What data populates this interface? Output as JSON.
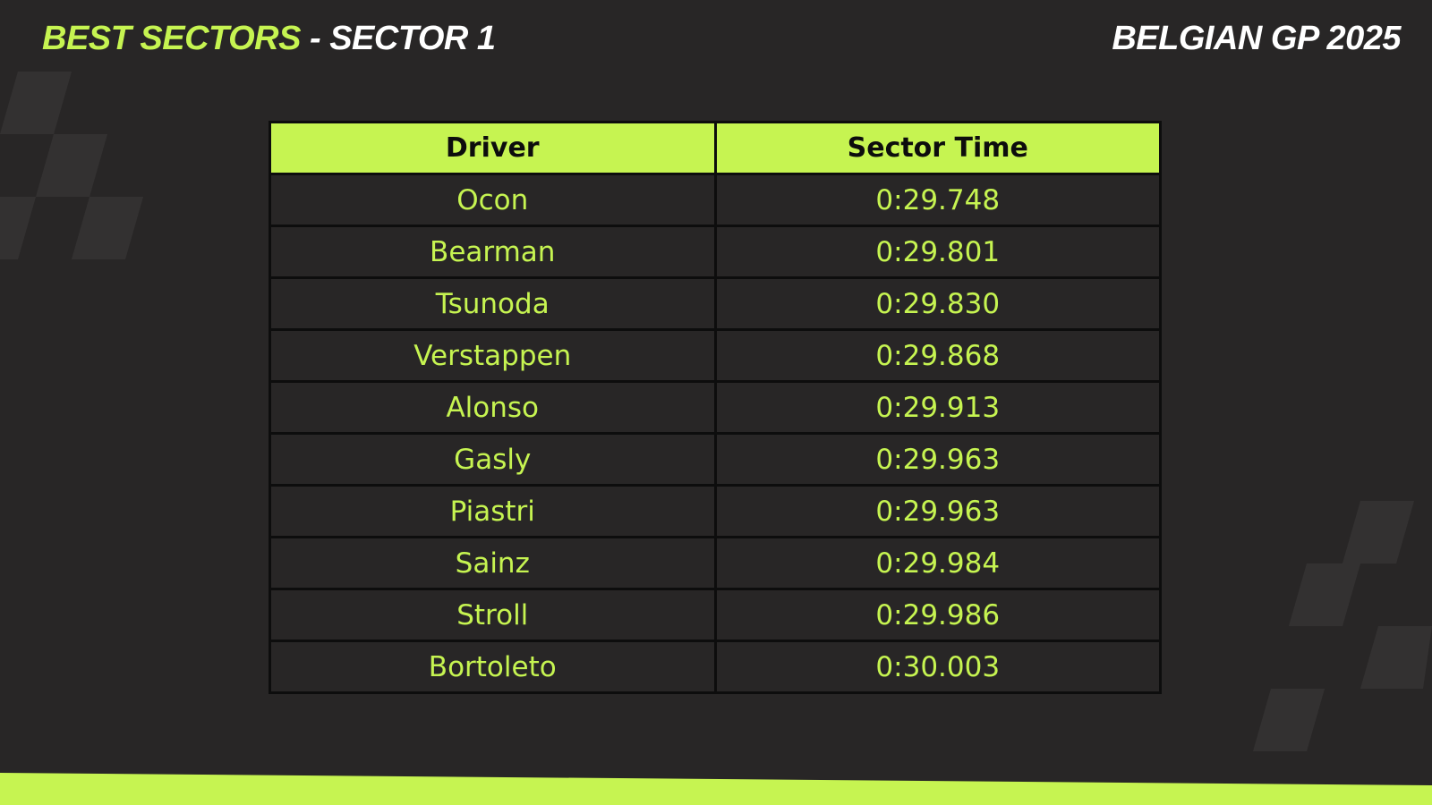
{
  "header": {
    "title_accent": "BEST SECTORS",
    "title_rest": " - SECTOR 1",
    "event": "BELGIAN GP 2025"
  },
  "colors": {
    "accent": "#c6f451",
    "background": "#282626",
    "text_light": "#ffffff",
    "border": "#0d0d0d"
  },
  "chart_data": {
    "type": "table",
    "columns": [
      "Driver",
      "Sector Time"
    ],
    "rows": [
      [
        "Ocon",
        "0:29.748"
      ],
      [
        "Bearman",
        "0:29.801"
      ],
      [
        "Tsunoda",
        "0:29.830"
      ],
      [
        "Verstappen",
        "0:29.868"
      ],
      [
        "Alonso",
        "0:29.913"
      ],
      [
        "Gasly",
        "0:29.963"
      ],
      [
        "Piastri",
        "0:29.963"
      ],
      [
        "Sainz",
        "0:29.984"
      ],
      [
        "Stroll",
        "0:29.986"
      ],
      [
        "Bortoleto",
        "0:30.003"
      ]
    ]
  }
}
